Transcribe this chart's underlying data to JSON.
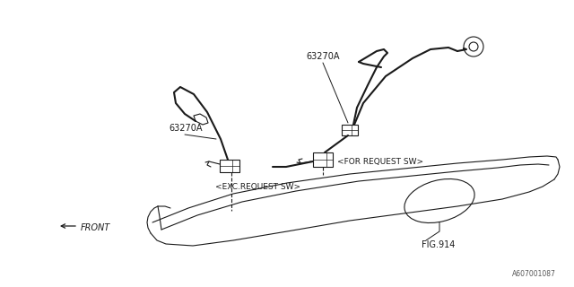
{
  "background_color": "#ffffff",
  "line_color": "#1a1a1a",
  "text_color": "#1a1a1a",
  "figure_id": "A607001087",
  "labels": {
    "part_number_1": "63270A",
    "part_number_2": "63270A",
    "for_request": "<FOR REQUEST SW>",
    "exc_request": "<EXC.REQUEST SW>",
    "fig_ref": "FIG.914",
    "front": "FRONT"
  }
}
